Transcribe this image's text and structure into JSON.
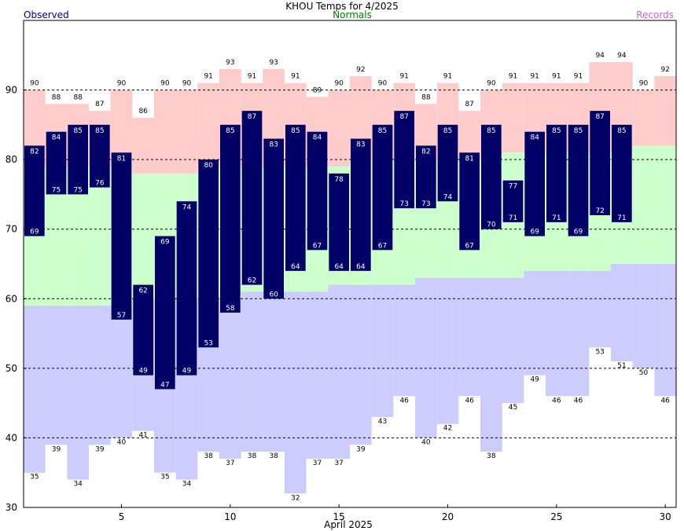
{
  "chart_data": {
    "type": "bar",
    "title": "KHOU Temps for 4/2025",
    "xlabel": "April 2025",
    "ylabel": "",
    "legend": {
      "observed": "Observed",
      "normals": "Normals",
      "records": "Records"
    },
    "colors": {
      "observed": "#000066",
      "normal_band": "#ccffcc",
      "record_high_band": "#ffcccc",
      "record_low_band": "#ccccff",
      "observed_label": "#000080",
      "normals_label": "#008000",
      "records_label": "#cc66cc",
      "gridline": "#000000"
    },
    "ylim": [
      30,
      100
    ],
    "y_ticks": [
      30,
      40,
      50,
      60,
      70,
      80,
      90
    ],
    "x_ticks": [
      5,
      10,
      15,
      20,
      25,
      30
    ],
    "grid": "dashed horizontal",
    "days": [
      1,
      2,
      3,
      4,
      5,
      6,
      7,
      8,
      9,
      10,
      11,
      12,
      13,
      14,
      15,
      16,
      17,
      18,
      19,
      20,
      21,
      22,
      23,
      24,
      25,
      26,
      27,
      28,
      29,
      30
    ],
    "observed_high": [
      82,
      84,
      85,
      85,
      81,
      62,
      69,
      74,
      80,
      85,
      87,
      83,
      85,
      84,
      78,
      83,
      85,
      87,
      82,
      85,
      81,
      85,
      77,
      84,
      85,
      85,
      87,
      85,
      null,
      null
    ],
    "observed_low": [
      69,
      75,
      75,
      76,
      57,
      49,
      47,
      49,
      53,
      58,
      62,
      60,
      64,
      67,
      64,
      64,
      67,
      73,
      73,
      74,
      67,
      70,
      71,
      69,
      71,
      69,
      72,
      71,
      null,
      null
    ],
    "record_high": [
      90,
      88,
      88,
      87,
      90,
      86,
      90,
      90,
      91,
      93,
      91,
      93,
      91,
      89,
      90,
      92,
      90,
      91,
      88,
      91,
      87,
      90,
      91,
      91,
      91,
      91,
      94,
      94,
      90,
      92
    ],
    "record_low": [
      35,
      39,
      34,
      39,
      40,
      41,
      35,
      34,
      38,
      37,
      38,
      38,
      32,
      37,
      37,
      39,
      43,
      46,
      40,
      42,
      46,
      38,
      45,
      49,
      46,
      46,
      53,
      51,
      50,
      46
    ],
    "normal_high": [
      79,
      79,
      79,
      79,
      79,
      78,
      78,
      78,
      79,
      79,
      79,
      79,
      79,
      79,
      79,
      80,
      80,
      80,
      80,
      80,
      80,
      80,
      81,
      81,
      81,
      81,
      81,
      81,
      82,
      82
    ],
    "normal_low": [
      59,
      59,
      59,
      59,
      59,
      60,
      60,
      60,
      60,
      60,
      61,
      61,
      61,
      61,
      62,
      62,
      62,
      62,
      63,
      63,
      63,
      63,
      63,
      64,
      64,
      64,
      64,
      65,
      65,
      65
    ]
  }
}
